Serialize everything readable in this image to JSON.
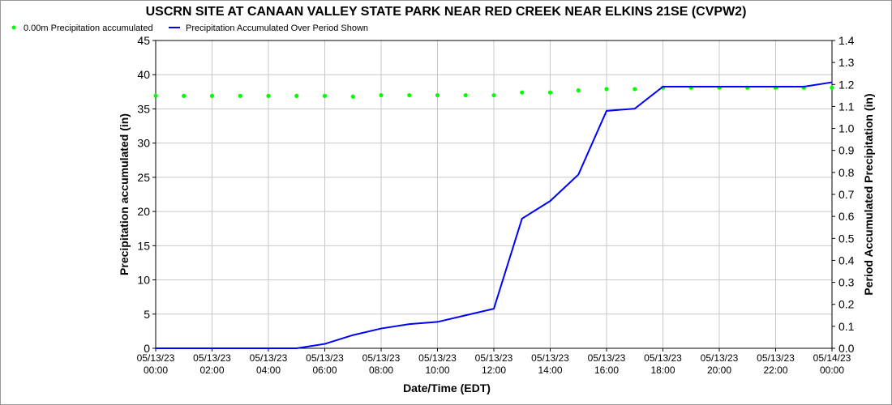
{
  "chart_data": {
    "type": "line",
    "title": "USCRN SITE AT CANAAN VALLEY STATE PARK NEAR RED CREEK NEAR ELKINS 21SE (CVPW2)",
    "xlabel": "Date/Time (EDT)",
    "ylabel_left": "Precipitation accumulated (in)",
    "ylabel_right": "Period Accumulated Precipitation (in)",
    "ylim_left": [
      0,
      45
    ],
    "ylim_right": [
      0,
      1.4
    ],
    "yticks_left": [
      0,
      5,
      10,
      15,
      20,
      25,
      30,
      35,
      40,
      45
    ],
    "yticks_right": [
      0,
      0.1,
      0.2,
      0.3,
      0.4,
      0.5,
      0.6,
      0.7,
      0.8,
      0.9,
      1.0,
      1.1,
      1.2,
      1.3,
      1.4
    ],
    "yticks_right_labels": [
      "0.0",
      "0.1",
      "0.2",
      "0.3",
      "0.4",
      "0.5",
      "0.6",
      "0.7",
      "0.8",
      "0.9",
      "1.0",
      "1.1",
      "1.2",
      "1.3",
      "1.4"
    ],
    "x_ticks": [
      {
        "hour": 0,
        "date": "05/13/23",
        "time": "00:00"
      },
      {
        "hour": 2,
        "date": "05/13/23",
        "time": "02:00"
      },
      {
        "hour": 4,
        "date": "05/13/23",
        "time": "04:00"
      },
      {
        "hour": 6,
        "date": "05/13/23",
        "time": "06:00"
      },
      {
        "hour": 8,
        "date": "05/13/23",
        "time": "08:00"
      },
      {
        "hour": 10,
        "date": "05/13/23",
        "time": "10:00"
      },
      {
        "hour": 12,
        "date": "05/13/23",
        "time": "12:00"
      },
      {
        "hour": 14,
        "date": "05/13/23",
        "time": "14:00"
      },
      {
        "hour": 16,
        "date": "05/13/23",
        "time": "16:00"
      },
      {
        "hour": 18,
        "date": "05/13/23",
        "time": "18:00"
      },
      {
        "hour": 20,
        "date": "05/13/23",
        "time": "20:00"
      },
      {
        "hour": 22,
        "date": "05/13/23",
        "time": "22:00"
      },
      {
        "hour": 24,
        "date": "05/14/23",
        "time": "00:00"
      }
    ],
    "xlim_hours": [
      0,
      24
    ],
    "grid": true,
    "legend_position": "top-left",
    "series": [
      {
        "name": "0.00m Precipitation accumulated",
        "axis": "left",
        "style": "points",
        "color": "#00ff00",
        "x_hours": [
          0,
          1,
          2,
          3,
          4,
          5,
          6,
          7,
          8,
          9,
          10,
          11,
          12,
          13,
          14,
          15,
          16,
          17,
          18,
          19,
          20,
          21,
          22,
          23,
          24
        ],
        "values": [
          36.9,
          36.9,
          36.9,
          36.9,
          36.9,
          36.9,
          36.9,
          36.8,
          37.0,
          37.0,
          37.0,
          37.0,
          37.0,
          37.4,
          37.4,
          37.7,
          37.9,
          37.9,
          38.1,
          38.1,
          38.1,
          38.1,
          38.1,
          38.1,
          38.1
        ]
      },
      {
        "name": "Precipitation Accumulated Over Period Shown",
        "axis": "right",
        "style": "line",
        "color": "#0000ff",
        "x_hours": [
          0,
          1,
          2,
          3,
          4,
          5,
          6,
          7,
          8,
          9,
          10,
          11,
          12,
          13,
          14,
          15,
          16,
          17,
          18,
          19,
          20,
          21,
          22,
          23,
          24
        ],
        "values": [
          0.0,
          0.0,
          0.0,
          0.0,
          0.0,
          0.0,
          0.02,
          0.06,
          0.09,
          0.11,
          0.12,
          0.15,
          0.18,
          0.59,
          0.67,
          0.79,
          1.08,
          1.09,
          1.19,
          1.19,
          1.19,
          1.19,
          1.19,
          1.19,
          1.21
        ]
      }
    ]
  }
}
